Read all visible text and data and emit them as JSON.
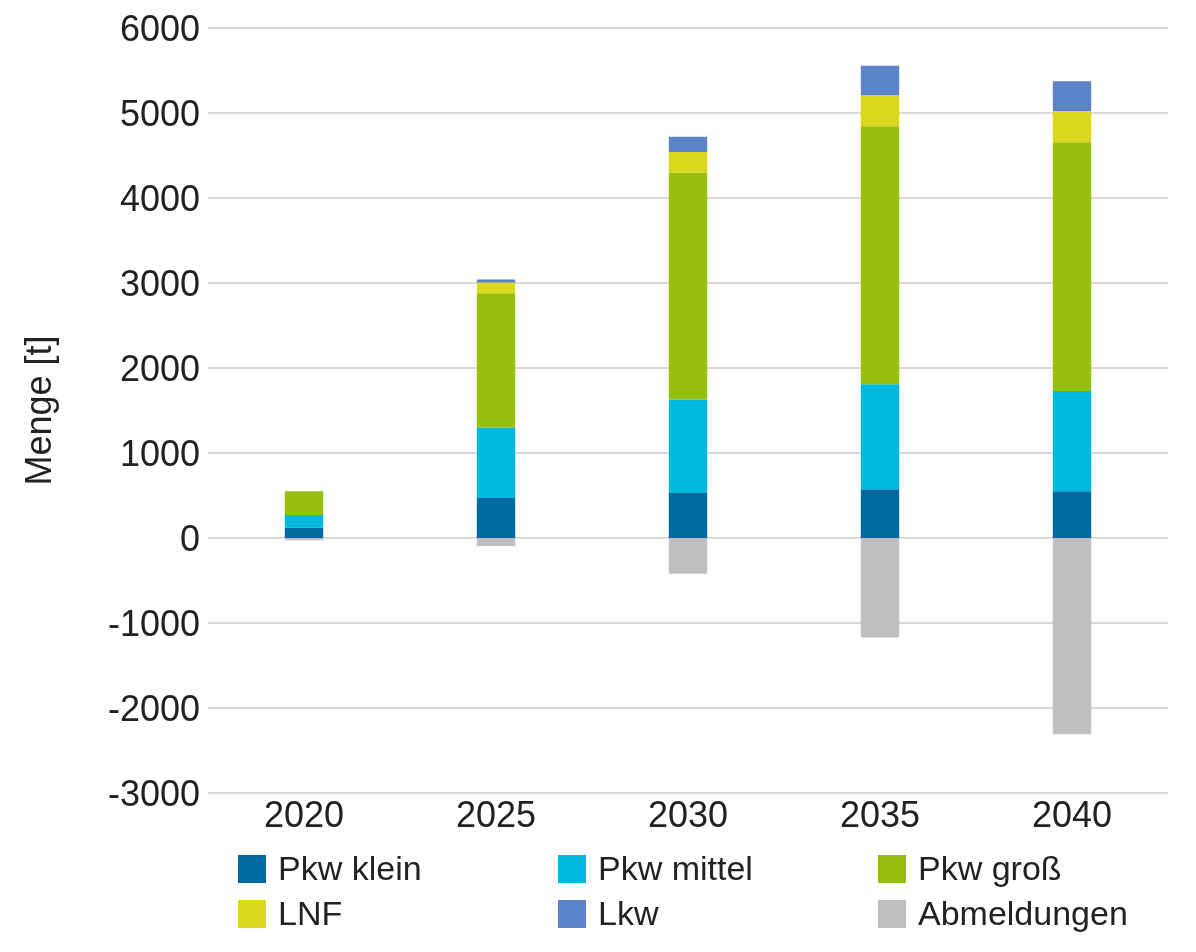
{
  "chart_data": {
    "type": "bar",
    "stacked": true,
    "ylabel": "Menge [t]",
    "categories": [
      "2020",
      "2025",
      "2030",
      "2035",
      "2040"
    ],
    "series": [
      {
        "name": "Pkw klein",
        "color": "#00699f",
        "values": [
          125,
          470,
          530,
          575,
          550
        ]
      },
      {
        "name": "Pkw mittel",
        "color": "#00b9df",
        "values": [
          145,
          830,
          1100,
          1235,
          1180
        ]
      },
      {
        "name": "Pkw groß",
        "color": "#97bf0d",
        "values": [
          280,
          1580,
          2670,
          3035,
          2925
        ]
      },
      {
        "name": "LNF",
        "color": "#dcd91c",
        "values": [
          0,
          125,
          240,
          365,
          370
        ]
      },
      {
        "name": "Lkw",
        "color": "#5b83c8",
        "values": [
          0,
          35,
          180,
          345,
          350
        ]
      },
      {
        "name": "Abmeldungen",
        "color": "#bfbfbf",
        "values": [
          -25,
          -95,
          -420,
          -1170,
          -2310
        ]
      }
    ],
    "ylim": [
      -3000,
      6000
    ],
    "yticks": [
      -3000,
      -2000,
      -1000,
      0,
      1000,
      2000,
      3000,
      4000,
      5000,
      6000
    ],
    "grid": "y",
    "legend": "bottom"
  }
}
